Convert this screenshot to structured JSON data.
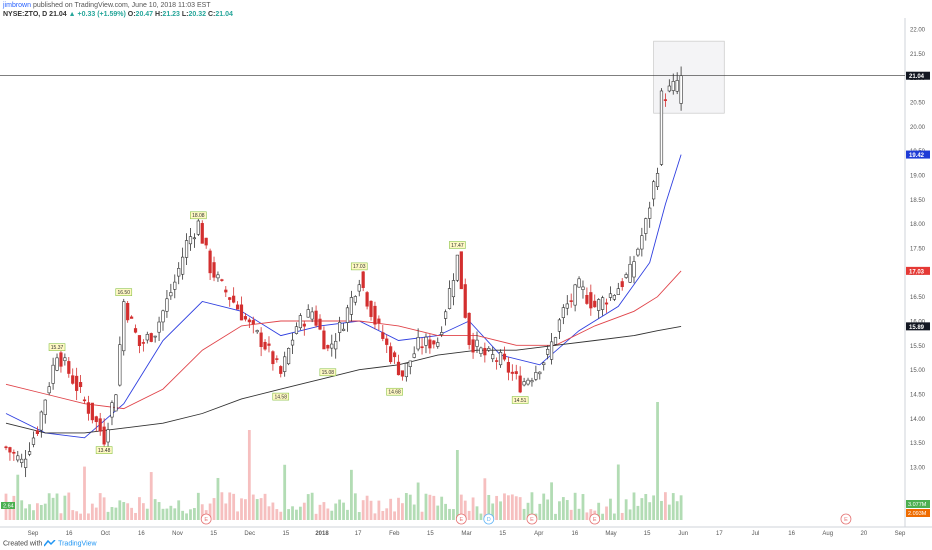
{
  "header": {
    "author": "jimbrown",
    "published": "published on TradingView.com, June 10, 2018 11:03 EST",
    "symbol_line": "NYSE:ZTO, D",
    "price": "21.04",
    "change": "+0.33 (+1.59%)",
    "o_label": "O:",
    "o_value": "20.47",
    "h_label": "H:",
    "h_value": "21.23",
    "l_label": "L:",
    "l_value": "20.32",
    "c_label": "C:",
    "c_value": "21.04"
  },
  "footer": {
    "created_with": "Created with",
    "brand": "TradingView"
  },
  "chart_data": {
    "type": "candlestick",
    "symbol": "NYSE:ZTO",
    "interval": "D",
    "y_axis_ticks": [
      "22.00",
      "21.50",
      "21.00",
      "20.50",
      "20.00",
      "19.50",
      "19.00",
      "18.50",
      "18.00",
      "17.50",
      "17.00",
      "16.50",
      "16.00",
      "15.50",
      "15.00",
      "14.50",
      "14.00",
      "13.50",
      "13.00"
    ],
    "ylim": [
      12.7,
      22.3
    ],
    "x_axis_ticks": [
      "Sep",
      "16",
      "Oct",
      "16",
      "Nov",
      "15",
      "Dec",
      "15",
      "2018",
      "17",
      "Feb",
      "15",
      "Mar",
      "15",
      "Apr",
      "16",
      "May",
      "15",
      "Jun",
      "17",
      "Jul",
      "16",
      "Aug",
      "20",
      "Sep"
    ],
    "price_tags": [
      {
        "label": "21.04",
        "value": 21.04,
        "bg": "#131722",
        "fg": "#ffffff"
      },
      {
        "label": "19.42",
        "value": 19.42,
        "bg": "#1e3bd6",
        "fg": "#ffffff"
      },
      {
        "label": "17.03",
        "value": 17.03,
        "bg": "#e53935",
        "fg": "#ffffff"
      },
      {
        "label": "15.89",
        "value": 15.89,
        "bg": "#131722",
        "fg": "#ffffff"
      }
    ],
    "volume_tags": [
      {
        "label": "3.077M",
        "bg": "#4caf50"
      },
      {
        "label": "2.093M",
        "bg": "#ef6c00"
      }
    ],
    "left_tag": "2.64",
    "high_low_labels": [
      {
        "text": "15.37",
        "date_index": 13,
        "value": 15.37,
        "pos": "above"
      },
      {
        "text": "13.48",
        "date_index": 25,
        "value": 13.48,
        "pos": "below"
      },
      {
        "text": "16.50",
        "date_index": 30,
        "value": 16.5,
        "pos": "above"
      },
      {
        "text": "18.08",
        "date_index": 49,
        "value": 18.08,
        "pos": "above"
      },
      {
        "text": "14.58",
        "date_index": 70,
        "value": 14.58,
        "pos": "below"
      },
      {
        "text": "15.08",
        "date_index": 82,
        "value": 15.08,
        "pos": "below"
      },
      {
        "text": "17.03",
        "date_index": 90,
        "value": 17.03,
        "pos": "above"
      },
      {
        "text": "14.68",
        "date_index": 99,
        "value": 14.68,
        "pos": "below"
      },
      {
        "text": "17.47",
        "date_index": 115,
        "value": 17.47,
        "pos": "above"
      },
      {
        "text": "14.51",
        "date_index": 131,
        "value": 14.51,
        "pos": "below"
      }
    ],
    "anchors": [
      [
        0,
        13.4
      ],
      [
        4,
        13.1
      ],
      [
        8,
        13.8
      ],
      [
        13,
        15.37
      ],
      [
        17,
        14.8
      ],
      [
        21,
        14.2
      ],
      [
        25,
        13.6
      ],
      [
        28,
        14.6
      ],
      [
        30,
        16.4
      ],
      [
        34,
        15.5
      ],
      [
        38,
        15.8
      ],
      [
        43,
        16.8
      ],
      [
        46,
        17.6
      ],
      [
        49,
        18.0
      ],
      [
        52,
        17.1
      ],
      [
        55,
        16.7
      ],
      [
        58,
        16.4
      ],
      [
        62,
        15.9
      ],
      [
        66,
        15.5
      ],
      [
        70,
        14.9
      ],
      [
        74,
        15.9
      ],
      [
        78,
        16.2
      ],
      [
        82,
        15.4
      ],
      [
        86,
        16.0
      ],
      [
        90,
        16.9
      ],
      [
        94,
        16.0
      ],
      [
        98,
        15.3
      ],
      [
        101,
        14.9
      ],
      [
        105,
        15.5
      ],
      [
        110,
        15.6
      ],
      [
        115,
        17.3
      ],
      [
        118,
        15.6
      ],
      [
        122,
        15.3
      ],
      [
        126,
        15.2
      ],
      [
        131,
        14.7
      ],
      [
        134,
        14.9
      ],
      [
        138,
        15.3
      ],
      [
        142,
        16.2
      ],
      [
        146,
        16.7
      ],
      [
        150,
        16.3
      ],
      [
        155,
        16.6
      ],
      [
        159,
        17.0
      ],
      [
        163,
        18.0
      ],
      [
        166,
        19.2
      ],
      [
        167,
        20.6
      ],
      [
        170,
        20.8
      ],
      [
        172,
        21.04
      ]
    ],
    "ma_lines": [
      {
        "name": "",
        "color": "#2f3fe0",
        "points": [
          [
            0,
            14.1
          ],
          [
            10,
            13.7
          ],
          [
            20,
            13.6
          ],
          [
            30,
            14.3
          ],
          [
            40,
            15.6
          ],
          [
            50,
            16.4
          ],
          [
            60,
            16.2
          ],
          [
            70,
            15.7
          ],
          [
            80,
            15.9
          ],
          [
            90,
            16.0
          ],
          [
            100,
            15.6
          ],
          [
            110,
            15.7
          ],
          [
            118,
            16.0
          ],
          [
            126,
            15.3
          ],
          [
            136,
            15.1
          ],
          [
            146,
            15.8
          ],
          [
            156,
            16.3
          ],
          [
            164,
            17.2
          ],
          [
            168,
            18.4
          ],
          [
            172,
            19.42
          ]
        ]
      },
      {
        "name": "",
        "color": "#e0444a",
        "points": [
          [
            0,
            14.7
          ],
          [
            10,
            14.5
          ],
          [
            20,
            14.3
          ],
          [
            30,
            14.2
          ],
          [
            40,
            14.6
          ],
          [
            50,
            15.4
          ],
          [
            60,
            15.9
          ],
          [
            70,
            16.0
          ],
          [
            80,
            16.0
          ],
          [
            90,
            16.0
          ],
          [
            100,
            15.9
          ],
          [
            110,
            15.7
          ],
          [
            120,
            15.7
          ],
          [
            130,
            15.5
          ],
          [
            140,
            15.5
          ],
          [
            150,
            15.9
          ],
          [
            160,
            16.2
          ],
          [
            166,
            16.5
          ],
          [
            172,
            17.03
          ]
        ]
      },
      {
        "name": "",
        "color": "#333333",
        "points": [
          [
            0,
            13.9
          ],
          [
            10,
            13.7
          ],
          [
            20,
            13.7
          ],
          [
            30,
            13.8
          ],
          [
            40,
            13.9
          ],
          [
            50,
            14.1
          ],
          [
            60,
            14.4
          ],
          [
            70,
            14.6
          ],
          [
            80,
            14.8
          ],
          [
            90,
            15.0
          ],
          [
            100,
            15.1
          ],
          [
            110,
            15.3
          ],
          [
            120,
            15.4
          ],
          [
            130,
            15.4
          ],
          [
            140,
            15.5
          ],
          [
            150,
            15.6
          ],
          [
            160,
            15.7
          ],
          [
            166,
            15.8
          ],
          [
            172,
            15.89
          ]
        ]
      }
    ],
    "horizontal_line": 21.04,
    "highlight_box": {
      "x_from_index": 165,
      "x_to_index": 183,
      "y_from": 21.75,
      "y_to": 20.27
    },
    "earnings_markers": [
      {
        "label": "E",
        "date_index": 51,
        "color": "#e57373"
      },
      {
        "label": "E",
        "date_index": 116,
        "color": "#e57373"
      },
      {
        "label": "D",
        "date_index": 123,
        "color": "#64b5f6"
      },
      {
        "label": "E",
        "date_index": 134,
        "color": "#e57373"
      },
      {
        "label": "E",
        "date_index": 150,
        "color": "#e57373"
      },
      {
        "label": "E",
        "date_index": 214,
        "color": "#e57373"
      }
    ]
  }
}
